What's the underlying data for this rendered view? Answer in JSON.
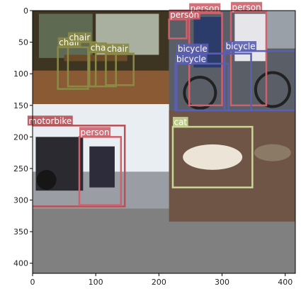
{
  "axes": {
    "x_ticks": [
      0,
      100,
      200,
      300,
      400
    ],
    "y_ticks": [
      0,
      50,
      100,
      150,
      200,
      250,
      300,
      350,
      400
    ],
    "x_range": [
      0,
      416
    ],
    "y_range": [
      416,
      0
    ]
  },
  "colors": {
    "chair": "#8a8a45",
    "person": "#d0606a",
    "bicycle": "#5b5fb0",
    "motorbike": "#b85055",
    "cat": "#c8d890",
    "empty_area": "#808080"
  },
  "tiles": [
    {
      "name": "tile-dining-room",
      "scene": "dining room with wooden chairs",
      "x0": 0,
      "y0": 0,
      "x1": 216,
      "y1": 148
    },
    {
      "name": "tile-bicycle-riders",
      "scene": "cyclists with bicycles",
      "x0": 216,
      "y0": 0,
      "x1": 416,
      "y1": 158
    },
    {
      "name": "tile-motorbike",
      "scene": "person kneeling beside motorbike",
      "x0": 0,
      "y0": 148,
      "x1": 216,
      "y1": 313
    },
    {
      "name": "tile-cats",
      "scene": "cats lying on carpet",
      "x0": 216,
      "y0": 158,
      "x1": 416,
      "y1": 334
    }
  ],
  "detections": [
    {
      "label": "chair",
      "class": "chair",
      "x0": 40,
      "y0": 58,
      "x1": 88,
      "y1": 124
    },
    {
      "label": "chair",
      "class": "chair",
      "x0": 56,
      "y0": 50,
      "x1": 100,
      "y1": 120
    },
    {
      "label": "cha",
      "class": "chair",
      "x0": 90,
      "y0": 66,
      "x1": 132,
      "y1": 120
    },
    {
      "label": "chair",
      "class": "chair",
      "x0": 116,
      "y0": 68,
      "x1": 160,
      "y1": 118
    },
    {
      "label": "person",
      "class": "person",
      "x0": 216,
      "y0": 14,
      "x1": 244,
      "y1": 44
    },
    {
      "label": "person",
      "class": "person",
      "x0": 248,
      "y0": 4,
      "x1": 300,
      "y1": 150
    },
    {
      "label": "person",
      "class": "person",
      "x0": 314,
      "y0": 2,
      "x1": 370,
      "y1": 150
    },
    {
      "label": "bicycle",
      "class": "bicycle",
      "x0": 228,
      "y0": 68,
      "x1": 346,
      "y1": 158
    },
    {
      "label": "bicycle",
      "class": "bicycle",
      "x0": 226,
      "y0": 84,
      "x1": 310,
      "y1": 158
    },
    {
      "label": "bicycle",
      "class": "bicycle",
      "x0": 304,
      "y0": 64,
      "x1": 416,
      "y1": 158
    },
    {
      "label": "motorbike",
      "class": "motorbike",
      "x0": -8,
      "y0": 182,
      "x1": 146,
      "y1": 310
    },
    {
      "label": "person",
      "class": "person",
      "x0": 74,
      "y0": 200,
      "x1": 140,
      "y1": 308
    },
    {
      "label": "cat",
      "class": "cat",
      "x0": 222,
      "y0": 184,
      "x1": 348,
      "y1": 280
    }
  ]
}
